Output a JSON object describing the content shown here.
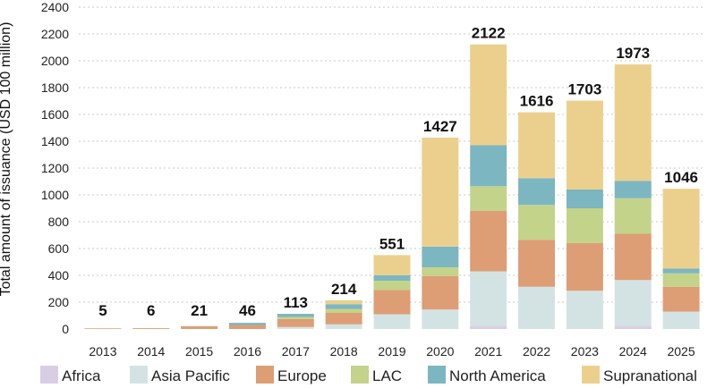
{
  "chart_data": {
    "type": "bar",
    "stacked": true,
    "categories": [
      "2013",
      "2014",
      "2015",
      "2016",
      "2017",
      "2018",
      "2019",
      "2020",
      "2021",
      "2022",
      "2023",
      "2024",
      "2025"
    ],
    "totals": [
      5,
      6,
      21,
      46,
      113,
      214,
      551,
      1427,
      2122,
      1616,
      1703,
      1973,
      1046
    ],
    "series": [
      {
        "name": "Africa",
        "color": "#d9cde6",
        "values": [
          0,
          0,
          0,
          0,
          0,
          0,
          0,
          0,
          20,
          0,
          0,
          20,
          0
        ]
      },
      {
        "name": "Asia Pacific",
        "color": "#d3e3e3",
        "values": [
          0,
          0,
          0,
          0,
          15,
          35,
          110,
          145,
          410,
          315,
          285,
          345,
          130
        ]
      },
      {
        "name": "Europe",
        "color": "#dd9e75",
        "values": [
          5,
          6,
          21,
          30,
          60,
          85,
          180,
          250,
          450,
          350,
          355,
          345,
          185
        ]
      },
      {
        "name": "LAC",
        "color": "#c3d38a",
        "values": [
          0,
          0,
          0,
          0,
          15,
          30,
          70,
          65,
          185,
          260,
          260,
          265,
          100
        ]
      },
      {
        "name": "North America",
        "color": "#7cb6c1",
        "values": [
          0,
          0,
          0,
          16,
          23,
          35,
          40,
          155,
          305,
          200,
          140,
          130,
          35
        ]
      },
      {
        "name": "Supranational",
        "color": "#ebd08d",
        "values": [
          0,
          0,
          0,
          0,
          0,
          29,
          151,
          812,
          752,
          491,
          663,
          868,
          596
        ]
      }
    ],
    "ylabel": "Total amount of issuance (USD 100 million)",
    "ylim": [
      0,
      2400
    ],
    "yticks": [
      0,
      200,
      400,
      600,
      800,
      1000,
      1200,
      1400,
      1600,
      1800,
      2000,
      2200,
      2400
    ],
    "grid": true,
    "legend_position": "bottom"
  }
}
